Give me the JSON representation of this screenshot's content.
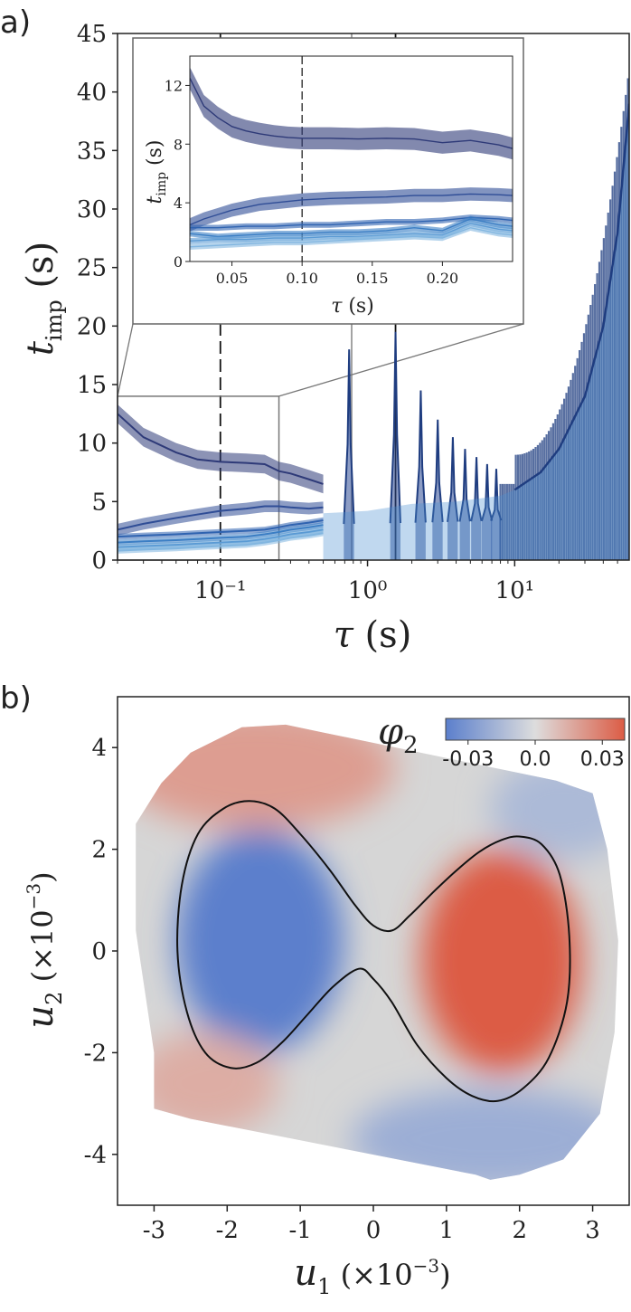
{
  "panel_a": {
    "label": "a)"
  },
  "panel_b": {
    "label": "b)"
  },
  "chart_data": [
    {
      "type": "line",
      "panel": "a",
      "title": "",
      "xlabel": "τ (s)",
      "ylabel": "t_imp (s)",
      "x_scale": "log",
      "xlim": [
        0.02,
        60
      ],
      "ylim": [
        0,
        45
      ],
      "xticks": [
        "10⁻¹",
        "10⁰",
        "10¹"
      ],
      "xtick_values": [
        0.1,
        1,
        10
      ],
      "yticks": [
        "0",
        "5",
        "10",
        "15",
        "20",
        "25",
        "30",
        "35",
        "40",
        "45"
      ],
      "vertical_lines": [
        {
          "x": 0.1,
          "style": "dashed",
          "color": "#111111"
        },
        {
          "x": 0.78,
          "style": "solid",
          "color": "#999999"
        },
        {
          "x": 1.55,
          "style": "solid",
          "color": "#111111"
        }
      ],
      "inset_zoom_region": {
        "xlim": [
          0.02,
          0.25
        ],
        "ylim": [
          0,
          14
        ]
      },
      "series": [
        {
          "x": [
            0.02,
            0.03,
            0.05,
            0.07,
            0.1,
            0.15,
            0.2,
            0.25,
            0.3,
            0.4,
            0.5
          ],
          "y": [
            12.5,
            10.5,
            9.2,
            8.6,
            8.4,
            8.3,
            8.2,
            7.6,
            7.4,
            6.9,
            6.5
          ],
          "color": "#2e3a78"
        },
        {
          "x": [
            0.02,
            0.03,
            0.05,
            0.07,
            0.1,
            0.15,
            0.2,
            0.25,
            0.3,
            0.4,
            0.5
          ],
          "y": [
            2.6,
            3.1,
            3.6,
            3.9,
            4.2,
            4.4,
            4.6,
            4.6,
            4.5,
            4.4,
            4.5
          ],
          "color": "#2f4d96"
        },
        {
          "x": [
            0.02,
            0.03,
            0.05,
            0.07,
            0.1,
            0.15,
            0.2,
            0.25,
            0.3,
            0.4,
            0.5
          ],
          "y": [
            2.0,
            2.1,
            2.2,
            2.3,
            2.4,
            2.5,
            2.6,
            2.8,
            3.0,
            3.2,
            3.4
          ],
          "color": "#2f63b0"
        },
        {
          "x": [
            0.02,
            0.03,
            0.05,
            0.07,
            0.1,
            0.15,
            0.2,
            0.25,
            0.3,
            0.4,
            0.5
          ],
          "y": [
            1.5,
            1.6,
            1.7,
            1.8,
            1.9,
            2.0,
            2.2,
            2.4,
            2.6,
            2.8,
            3.0
          ],
          "color": "#3b7ec4"
        },
        {
          "x": [
            0.02,
            0.03,
            0.05,
            0.07,
            0.1,
            0.15,
            0.2,
            0.25,
            0.3,
            0.4,
            0.5
          ],
          "y": [
            1.1,
            1.2,
            1.3,
            1.4,
            1.5,
            1.6,
            1.8,
            2.0,
            2.2,
            2.4,
            2.6
          ],
          "color": "#5a9ad4"
        },
        {
          "x": [
            0.02,
            0.03,
            0.05,
            0.07,
            0.1,
            0.15,
            0.2,
            0.25,
            0.3,
            0.4,
            0.5
          ],
          "y": [
            0.8,
            0.9,
            1.0,
            1.1,
            1.2,
            1.3,
            1.5,
            1.7,
            1.9,
            2.1,
            2.3
          ],
          "color": "#82b6e0"
        }
      ],
      "peaks": [
        {
          "x": 0.75,
          "y": 18.0
        },
        {
          "x": 1.55,
          "y": 19.5
        },
        {
          "x": 2.3,
          "y": 14.5
        },
        {
          "x": 3.0,
          "y": 12.0
        },
        {
          "x": 3.8,
          "y": 10.5
        },
        {
          "x": 4.6,
          "y": 9.5
        },
        {
          "x": 5.5,
          "y": 8.8
        },
        {
          "x": 6.5,
          "y": 8.2
        },
        {
          "x": 7.5,
          "y": 7.8
        }
      ],
      "tail": {
        "x": [
          10,
          15,
          20,
          30,
          40,
          50,
          60
        ],
        "y": [
          6,
          7.5,
          9.5,
          14,
          20,
          28,
          39
        ]
      }
    },
    {
      "type": "line",
      "panel": "a-inset",
      "xlabel": "τ (s)",
      "ylabel": "t_imp (s)",
      "xlim": [
        0.02,
        0.25
      ],
      "ylim": [
        0,
        14
      ],
      "xticks": [
        "0.05",
        "0.10",
        "0.15",
        "0.20"
      ],
      "xtick_values": [
        0.05,
        0.1,
        0.15,
        0.2
      ],
      "yticks": [
        "0",
        "4",
        "8",
        "12"
      ],
      "ytick_values": [
        0,
        4,
        8,
        12
      ],
      "vertical_lines": [
        {
          "x": 0.1,
          "style": "dashed",
          "color": "#111111"
        }
      ],
      "series": [
        {
          "x": [
            0.02,
            0.03,
            0.04,
            0.05,
            0.06,
            0.07,
            0.08,
            0.09,
            0.1,
            0.12,
            0.14,
            0.16,
            0.18,
            0.2,
            0.22,
            0.24,
            0.25
          ],
          "y": [
            12.5,
            10.6,
            9.8,
            9.2,
            8.9,
            8.7,
            8.55,
            8.45,
            8.4,
            8.4,
            8.35,
            8.4,
            8.35,
            8.1,
            8.25,
            7.95,
            7.7
          ],
          "color": "#2e3a78"
        },
        {
          "x": [
            0.02,
            0.03,
            0.04,
            0.05,
            0.06,
            0.07,
            0.08,
            0.09,
            0.1,
            0.12,
            0.14,
            0.16,
            0.18,
            0.2,
            0.22,
            0.24,
            0.25
          ],
          "y": [
            2.5,
            2.9,
            3.2,
            3.5,
            3.7,
            3.9,
            4.0,
            4.1,
            4.2,
            4.3,
            4.35,
            4.4,
            4.5,
            4.5,
            4.6,
            4.55,
            4.5
          ],
          "color": "#2f4d96"
        },
        {
          "x": [
            0.02,
            0.04,
            0.06,
            0.08,
            0.1,
            0.12,
            0.14,
            0.16,
            0.18,
            0.2,
            0.22,
            0.24,
            0.25
          ],
          "y": [
            2.3,
            2.3,
            2.4,
            2.4,
            2.5,
            2.5,
            2.6,
            2.7,
            2.7,
            2.8,
            3.0,
            2.9,
            2.8
          ],
          "color": "#2f63b0"
        },
        {
          "x": [
            0.02,
            0.04,
            0.06,
            0.08,
            0.1,
            0.12,
            0.14,
            0.16,
            0.18,
            0.2,
            0.22,
            0.24,
            0.25
          ],
          "y": [
            1.9,
            1.7,
            1.8,
            1.9,
            1.9,
            2.0,
            2.0,
            2.1,
            2.3,
            2.1,
            2.9,
            2.5,
            2.4
          ],
          "color": "#3b7ec4"
        },
        {
          "x": [
            0.02,
            0.04,
            0.06,
            0.08,
            0.1,
            0.12,
            0.14,
            0.16,
            0.18,
            0.2,
            0.22,
            0.24,
            0.25
          ],
          "y": [
            1.4,
            1.5,
            1.5,
            1.6,
            1.6,
            1.7,
            1.7,
            1.8,
            1.9,
            1.8,
            2.6,
            2.2,
            2.1
          ],
          "color": "#5a9ad4"
        },
        {
          "x": [
            0.02,
            0.04,
            0.06,
            0.08,
            0.1,
            0.12,
            0.14,
            0.16,
            0.18,
            0.2,
            0.22,
            0.24,
            0.25
          ],
          "y": [
            1.0,
            1.1,
            1.2,
            1.3,
            1.3,
            1.4,
            1.5,
            1.6,
            1.7,
            1.6,
            2.3,
            1.9,
            1.8
          ],
          "color": "#82b6e0"
        }
      ]
    },
    {
      "type": "heatmap",
      "panel": "b",
      "xlabel": "u₁ (×10⁻³)",
      "ylabel": "u₂ (×10⁻³)",
      "xlim": [
        -3.5,
        3.5
      ],
      "ylim": [
        -5,
        5
      ],
      "xticks": [
        "-3",
        "-2",
        "-1",
        "0",
        "1",
        "2",
        "3"
      ],
      "xtick_values": [
        -3,
        -2,
        -1,
        0,
        1,
        2,
        3
      ],
      "yticks": [
        "-4",
        "-2",
        "0",
        "2",
        "4"
      ],
      "ytick_values": [
        -4,
        -2,
        0,
        2,
        4
      ],
      "colorbar": {
        "label": "φ₂",
        "min": -0.04,
        "max": 0.04,
        "ticks": [
          "-0.03",
          "0.0",
          "0.03"
        ],
        "tick_values": [
          -0.03,
          0.0,
          0.03
        ],
        "colors": [
          "#5b7fcc",
          "#dddddd",
          "#dc5c45"
        ]
      },
      "domain_polygon": [
        [
          -2.5,
          3.9
        ],
        [
          -1.8,
          4.4
        ],
        [
          -1.2,
          4.45
        ],
        [
          -0.7,
          4.3
        ],
        [
          2.5,
          3.35
        ],
        [
          3.0,
          3.1
        ],
        [
          3.2,
          2.0
        ],
        [
          3.35,
          0.2
        ],
        [
          3.3,
          -1.6
        ],
        [
          3.1,
          -3.2
        ],
        [
          2.6,
          -4.1
        ],
        [
          2.0,
          -4.4
        ],
        [
          1.6,
          -4.5
        ],
        [
          1.4,
          -4.4
        ],
        [
          -2.5,
          -3.3
        ],
        [
          -3.0,
          -3.1
        ],
        [
          -3.0,
          -2.0
        ],
        [
          -3.25,
          0.4
        ],
        [
          -3.25,
          2.5
        ],
        [
          -2.9,
          3.3
        ]
      ],
      "lobes": [
        {
          "x": -1.55,
          "y": 0.2,
          "value": -0.04,
          "rx": 1.15,
          "ry": 2.2
        },
        {
          "x": 1.75,
          "y": -0.2,
          "value": 0.04,
          "rx": 1.1,
          "ry": 2.2
        },
        {
          "x": -1.6,
          "y": 3.6,
          "value": 0.02,
          "rx": 1.9,
          "ry": 1.2
        },
        {
          "x": -2.3,
          "y": -2.6,
          "value": 0.015,
          "rx": 1.0,
          "ry": 1.0
        },
        {
          "x": 1.6,
          "y": -3.7,
          "value": -0.02,
          "rx": 1.9,
          "ry": 1.0
        },
        {
          "x": 2.6,
          "y": 2.8,
          "value": -0.015,
          "rx": 1.0,
          "ry": 1.0
        }
      ],
      "contour": {
        "x": [
          0.25,
          0.5,
          0.85,
          1.15,
          1.45,
          1.75,
          2.0,
          2.3,
          2.55,
          2.68,
          2.65,
          2.4,
          2.05,
          1.7,
          1.35,
          1.0,
          0.6,
          0.25,
          0.0,
          -0.2,
          -0.55,
          -0.9,
          -1.25,
          -1.6,
          -1.95,
          -2.3,
          -2.55,
          -2.68,
          -2.62,
          -2.4,
          -2.05,
          -1.7,
          -1.35,
          -1.0,
          -0.6,
          -0.25,
          0.0,
          0.25
        ],
        "y": [
          0.4,
          0.7,
          1.2,
          1.6,
          1.95,
          2.18,
          2.25,
          2.1,
          1.5,
          0.3,
          -1.0,
          -2.1,
          -2.7,
          -2.95,
          -2.85,
          -2.5,
          -1.85,
          -1.0,
          -0.55,
          -0.35,
          -0.7,
          -1.25,
          -1.8,
          -2.2,
          -2.3,
          -2.0,
          -1.2,
          0.0,
          1.3,
          2.3,
          2.8,
          2.95,
          2.8,
          2.3,
          1.6,
          0.9,
          0.5,
          0.4
        ]
      }
    }
  ]
}
